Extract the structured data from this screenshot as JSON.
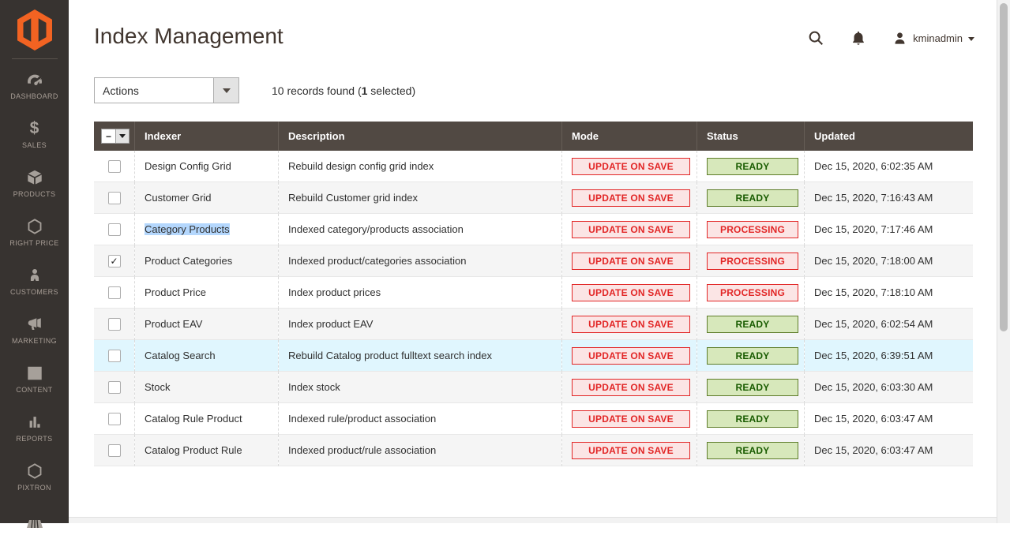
{
  "sidebar": {
    "items": [
      {
        "label": "DASHBOARD"
      },
      {
        "label": "SALES"
      },
      {
        "label": "PRODUCTS"
      },
      {
        "label": "RIGHT PRICE"
      },
      {
        "label": "CUSTOMERS"
      },
      {
        "label": "MARKETING"
      },
      {
        "label": "CONTENT"
      },
      {
        "label": "REPORTS"
      },
      {
        "label": "PIXTRON"
      },
      {
        "label": ""
      }
    ]
  },
  "header": {
    "title": "Index Management",
    "username": "kminadmin"
  },
  "toolbar": {
    "actions_label": "Actions",
    "records_prefix": "10 records found (",
    "records_selected_count": "1",
    "records_suffix": " selected)"
  },
  "table": {
    "select_all_symbol": "−",
    "columns": {
      "indexer": "Indexer",
      "description": "Description",
      "mode": "Mode",
      "status": "Status",
      "updated": "Updated"
    },
    "rows": [
      {
        "indexer": "Design Config Grid",
        "description": "Rebuild design config grid index",
        "mode": "UPDATE ON SAVE",
        "status": "READY",
        "status_type": "ready",
        "updated": "Dec 15, 2020, 6:02:35 AM",
        "checked": false,
        "variant": "default",
        "text_selected": false
      },
      {
        "indexer": "Customer Grid",
        "description": "Rebuild Customer grid index",
        "mode": "UPDATE ON SAVE",
        "status": "READY",
        "status_type": "ready",
        "updated": "Dec 15, 2020, 7:16:43 AM",
        "checked": false,
        "variant": "stripe",
        "text_selected": false
      },
      {
        "indexer": "Category Products",
        "description": "Indexed category/products association",
        "mode": "UPDATE ON SAVE",
        "status": "PROCESSING",
        "status_type": "processing",
        "updated": "Dec 15, 2020, 7:17:46 AM",
        "checked": false,
        "variant": "default",
        "text_selected": true
      },
      {
        "indexer": "Product Categories",
        "description": "Indexed product/categories association",
        "mode": "UPDATE ON SAVE",
        "status": "PROCESSING",
        "status_type": "processing",
        "updated": "Dec 15, 2020, 7:18:00 AM",
        "checked": true,
        "variant": "stripe",
        "text_selected": false
      },
      {
        "indexer": "Product Price",
        "description": "Index product prices",
        "mode": "UPDATE ON SAVE",
        "status": "PROCESSING",
        "status_type": "processing",
        "updated": "Dec 15, 2020, 7:18:10 AM",
        "checked": false,
        "variant": "default",
        "text_selected": false
      },
      {
        "indexer": "Product EAV",
        "description": "Index product EAV",
        "mode": "UPDATE ON SAVE",
        "status": "READY",
        "status_type": "ready",
        "updated": "Dec 15, 2020, 6:02:54 AM",
        "checked": false,
        "variant": "stripe",
        "text_selected": false
      },
      {
        "indexer": "Catalog Search",
        "description": "Rebuild Catalog product fulltext search index",
        "mode": "UPDATE ON SAVE",
        "status": "READY",
        "status_type": "ready",
        "updated": "Dec 15, 2020, 6:39:51 AM",
        "checked": false,
        "variant": "highlight",
        "text_selected": false
      },
      {
        "indexer": "Stock",
        "description": "Index stock",
        "mode": "UPDATE ON SAVE",
        "status": "READY",
        "status_type": "ready",
        "updated": "Dec 15, 2020, 6:03:30 AM",
        "checked": false,
        "variant": "stripe",
        "text_selected": false
      },
      {
        "indexer": "Catalog Rule Product",
        "description": "Indexed rule/product association",
        "mode": "UPDATE ON SAVE",
        "status": "READY",
        "status_type": "ready",
        "updated": "Dec 15, 2020, 6:03:47 AM",
        "checked": false,
        "variant": "default",
        "text_selected": false
      },
      {
        "indexer": "Catalog Product Rule",
        "description": "Indexed product/rule association",
        "mode": "UPDATE ON SAVE",
        "status": "READY",
        "status_type": "ready",
        "updated": "Dec 15, 2020, 6:03:47 AM",
        "checked": false,
        "variant": "stripe",
        "text_selected": false
      }
    ]
  },
  "colors": {
    "accent_orange": "#f26322",
    "critical_red": "#e22626",
    "success_green": "#185b00",
    "highlight_row_blue": "#e0f6fe",
    "text_selection_blue": "#b4d7fd",
    "sidebar_bg": "#373330",
    "grid_header_bg": "#514943"
  }
}
